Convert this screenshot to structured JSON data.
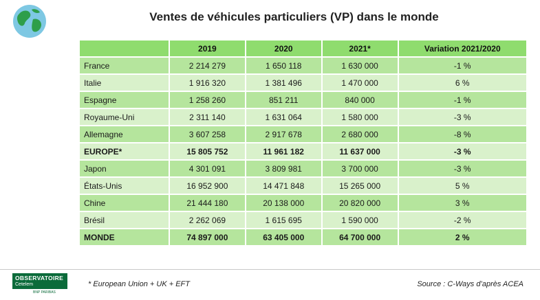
{
  "title": "Ventes de véhicules particuliers (VP) dans le monde",
  "table": {
    "headers": [
      "",
      "2019",
      "2020",
      "2021*",
      "Variation 2021/2020"
    ],
    "rows": [
      [
        "France",
        "2 214 279",
        "1 650 118",
        "1 630 000",
        "-1 %"
      ],
      [
        "Italie",
        "1 916 320",
        "1 381 496",
        "1 470 000",
        "6 %"
      ],
      [
        "Espagne",
        "1 258 260",
        "851 211",
        "840 000",
        "-1 %"
      ],
      [
        "Royaume-Uni",
        "2 311 140",
        "1 631 064",
        "1 580 000",
        "-3 %"
      ],
      [
        "Allemagne",
        "3 607 258",
        "2 917 678",
        "2 680 000",
        "-8 %"
      ],
      [
        "EUROPE*",
        "15 805 752",
        "11 961 182",
        "11 637 000",
        "-3 %"
      ],
      [
        "Japon",
        "4 301 091",
        "3 809 981",
        "3 700 000",
        "-3 %"
      ],
      [
        "États-Unis",
        "16 952 900",
        "14 471 848",
        "15 265 000",
        "5 %"
      ],
      [
        "Chine",
        "21 444 180",
        "20 138 000",
        "20 820 000",
        "3 %"
      ],
      [
        "Brésil",
        "2 262 069",
        "1 615 695",
        "1 590 000",
        "-2 %"
      ],
      [
        "MONDE",
        "74 897 000",
        "63 405 000",
        "64 700 000",
        "2 %"
      ]
    ]
  },
  "footer": {
    "footnote": "* European Union + UK + EFT",
    "source": "Source : C-Ways d’après ACEA",
    "logo_line1": "OBSERVATOIRE",
    "logo_line2": "Cetelem",
    "logo_bank": "BNP PARIBAS"
  },
  "colors": {
    "header_green": "#8fdc6e",
    "row_dark": "#b5e59d",
    "row_light": "#d9f1cb",
    "logo_green": "#0b6b3a"
  }
}
